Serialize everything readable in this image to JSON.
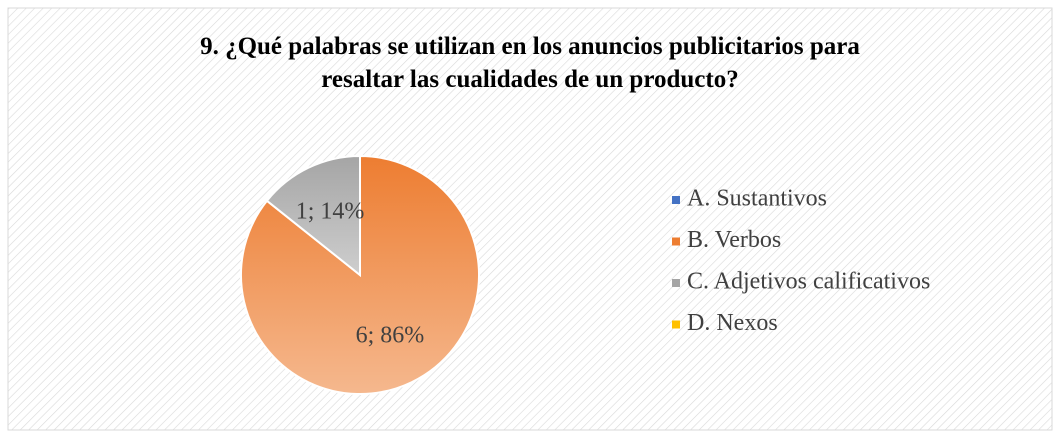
{
  "chart_data": {
    "type": "pie",
    "title": "9. ¿Qué palabras se utilizan en los anuncios publicitarios para resaltar las cualidades de un producto?",
    "categories": [
      "A. Sustantivos",
      "B. Verbos",
      "C. Adjetivos calificativos",
      "D. Nexos"
    ],
    "values": [
      0,
      6,
      1,
      0
    ],
    "value_labels": [
      null,
      "6; 86%",
      "1; 14%",
      null
    ],
    "colors": [
      "#4472c4",
      "#ed7d31",
      "#a5a5a5",
      "#ffc000"
    ],
    "legend": "right"
  }
}
